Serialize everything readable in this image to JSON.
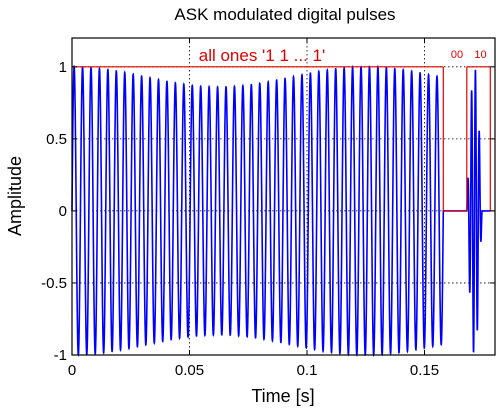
{
  "chart_data": {
    "type": "line",
    "title": "ASK modulated digital pulses",
    "xlabel": "Time [s]",
    "ylabel": "Amplitude",
    "xlim": [
      0,
      0.18
    ],
    "ylim": [
      -1,
      1.2
    ],
    "x_ticks": [
      0,
      0.05,
      0.1,
      0.15
    ],
    "x_tick_labels": [
      "0",
      "0.05",
      "0.1",
      "0.15"
    ],
    "y_ticks": [
      -1,
      -0.5,
      0,
      0.5,
      1
    ],
    "y_tick_labels": [
      "-1",
      "-0.5",
      "0",
      "0.5",
      "1"
    ],
    "grid": true,
    "series": [
      {
        "color": "#0000ff",
        "signal": {
          "carrier_cycles_visible_in_on_segment": 44,
          "on_interval": [
            0,
            0.158
          ],
          "off_interval": [
            0.158,
            0.168
          ],
          "burst_interval": [
            0.168,
            0.1745
          ],
          "amplitude": 1
        }
      }
    ],
    "annotations": [
      {
        "text": "all ones '1 1  ...  1'",
        "color": "#e00000",
        "x_range": [
          0,
          0.158
        ],
        "y": 1
      },
      {
        "text": "00",
        "color": "#e00000",
        "x_range": [
          0.158,
          0.168
        ],
        "y": 1
      },
      {
        "text": "10",
        "color": "#e00000",
        "x_range": [
          0.168,
          0.178
        ],
        "y": 1
      }
    ]
  },
  "colors": {
    "signal": "#0000ff",
    "annotation": "#e00000",
    "axes": "#000000",
    "grid": "#000000"
  }
}
